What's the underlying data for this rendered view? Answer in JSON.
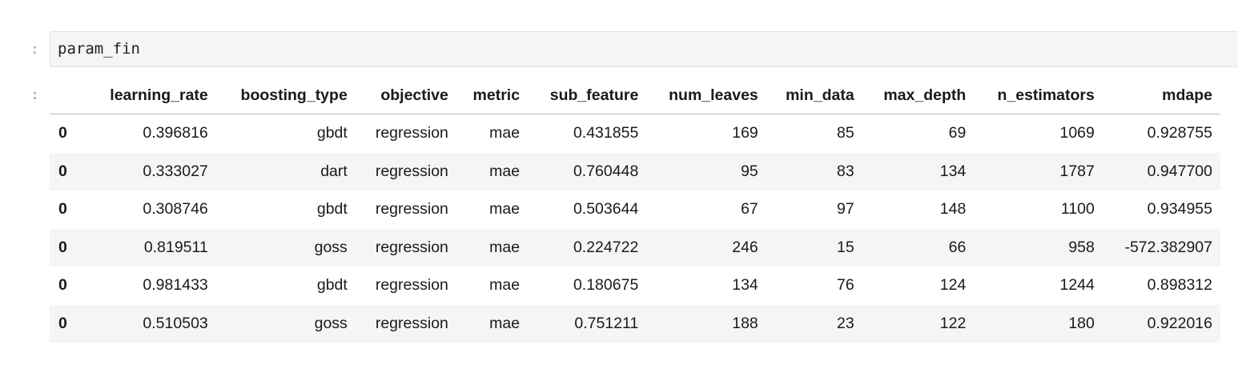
{
  "input_prompt": ":",
  "output_prompt": ":",
  "code": "param_fin",
  "table": {
    "columns": [
      "learning_rate",
      "boosting_type",
      "objective",
      "metric",
      "sub_feature",
      "num_leaves",
      "min_data",
      "max_depth",
      "n_estimators",
      "mdape"
    ],
    "rows": [
      {
        "index": "0",
        "cells": [
          "0.396816",
          "gbdt",
          "regression",
          "mae",
          "0.431855",
          "169",
          "85",
          "69",
          "1069",
          "0.928755"
        ]
      },
      {
        "index": "0",
        "cells": [
          "0.333027",
          "dart",
          "regression",
          "mae",
          "0.760448",
          "95",
          "83",
          "134",
          "1787",
          "0.947700"
        ]
      },
      {
        "index": "0",
        "cells": [
          "0.308746",
          "gbdt",
          "regression",
          "mae",
          "0.503644",
          "67",
          "97",
          "148",
          "1100",
          "0.934955"
        ]
      },
      {
        "index": "0",
        "cells": [
          "0.819511",
          "goss",
          "regression",
          "mae",
          "0.224722",
          "246",
          "15",
          "66",
          "958",
          "-572.382907"
        ]
      },
      {
        "index": "0",
        "cells": [
          "0.981433",
          "gbdt",
          "regression",
          "mae",
          "0.180675",
          "134",
          "76",
          "124",
          "1244",
          "0.898312"
        ]
      },
      {
        "index": "0",
        "cells": [
          "0.510503",
          "goss",
          "regression",
          "mae",
          "0.751211",
          "188",
          "23",
          "122",
          "180",
          "0.922016"
        ]
      }
    ]
  }
}
